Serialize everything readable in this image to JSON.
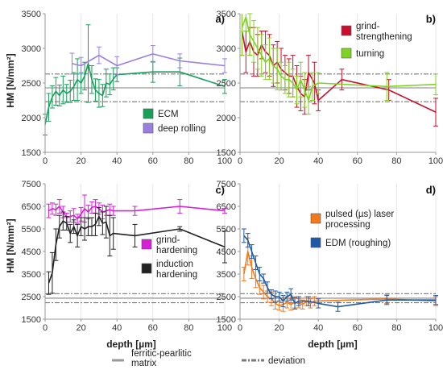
{
  "colors": {
    "axis": "#999999",
    "grid": "#e6e6e6",
    "matrix_line": "#9a9a9a",
    "deviation_line": "#7a7a7a"
  },
  "figure_legend": {
    "matrix_label": "ferritic-pearlitic matrix",
    "deviation_label": "deviation"
  },
  "chart_data": [
    {
      "type": "line",
      "panel_label": "a)",
      "xlabel": "",
      "ylabel": "HM [N/mm²]",
      "xlim": [
        0,
        100
      ],
      "ylim": [
        1500,
        3500
      ],
      "xticks": [
        0,
        20,
        40,
        60,
        80,
        100
      ],
      "yticks": [
        1500,
        2000,
        2500,
        3000,
        3500
      ],
      "grid": "vertical",
      "legend_position": "bottom-right",
      "reference": {
        "matrix": 2430,
        "deviation": [
          2230,
          2630
        ]
      },
      "series": [
        {
          "name": "ECM",
          "color": "#16a05a",
          "x": [
            0,
            2,
            4,
            6,
            8,
            10,
            12,
            14,
            16,
            18,
            20,
            22,
            24,
            26,
            28,
            30,
            32,
            34,
            36,
            38,
            40,
            60,
            75,
            100
          ],
          "y": [
            1900,
            2150,
            2300,
            2380,
            2320,
            2400,
            2350,
            2380,
            2450,
            2550,
            2500,
            2600,
            2780,
            2550,
            2400,
            2350,
            2320,
            2500,
            2480,
            2560,
            2620,
            2660,
            2660,
            2450
          ],
          "err": [
            150,
            200,
            160,
            200,
            150,
            200,
            130,
            160,
            200,
            300,
            150,
            200,
            560,
            200,
            160,
            200,
            160,
            200,
            150,
            160,
            100,
            150,
            200,
            100
          ]
        },
        {
          "name": "deep rolling",
          "color": "#9b7fe0",
          "x": [
            15,
            20,
            30,
            40,
            60,
            75,
            100
          ],
          "y": [
            2780,
            2750,
            2900,
            2750,
            2920,
            2820,
            2750
          ],
          "err": [
            150,
            120,
            120,
            130,
            120,
            100,
            100
          ]
        }
      ]
    },
    {
      "type": "line",
      "panel_label": "b)",
      "xlabel": "",
      "ylabel": "",
      "xlim": [
        0,
        100
      ],
      "ylim": [
        1500,
        3500
      ],
      "xticks": [
        0,
        20,
        40,
        60,
        80,
        100
      ],
      "yticks": [
        1500,
        2000,
        2500,
        3000,
        3500
      ],
      "grid": "vertical",
      "legend_position": "top-right",
      "reference": {
        "matrix": 2430,
        "deviation": [
          2230,
          2630
        ]
      },
      "series": [
        {
          "name": "grind-strengthening",
          "color": "#c8102e",
          "x": [
            1,
            3,
            5,
            7,
            9,
            11,
            13,
            15,
            17,
            19,
            21,
            23,
            25,
            27,
            29,
            31,
            33,
            35,
            38,
            40,
            52,
            76,
            100
          ],
          "y": [
            3250,
            2950,
            3100,
            2950,
            2900,
            3050,
            2950,
            2900,
            2750,
            2800,
            2700,
            2650,
            2600,
            2600,
            2450,
            2350,
            2300,
            2650,
            2500,
            2250,
            2550,
            2400,
            2080
          ],
          "err": [
            350,
            300,
            200,
            350,
            300,
            200,
            300,
            300,
            300,
            300,
            300,
            250,
            250,
            300,
            300,
            250,
            250,
            250,
            300,
            150,
            150,
            150,
            200
          ]
        },
        {
          "name": "turning",
          "color": "#7ed321",
          "x": [
            1,
            3,
            5,
            7,
            9,
            11,
            13,
            15,
            17,
            19,
            21,
            23,
            25,
            27,
            29,
            31,
            33,
            35,
            37,
            40,
            75,
            100
          ],
          "y": [
            3300,
            3450,
            3200,
            3100,
            3000,
            2900,
            2800,
            2850,
            2750,
            2700,
            2600,
            2550,
            2550,
            2500,
            2400,
            2550,
            2400,
            2250,
            2450,
            2500,
            2450,
            2480
          ],
          "err": [
            400,
            200,
            300,
            300,
            300,
            300,
            250,
            300,
            250,
            300,
            200,
            200,
            250,
            200,
            200,
            250,
            250,
            200,
            200,
            150,
            200,
            150
          ]
        }
      ]
    },
    {
      "type": "line",
      "panel_label": "c)",
      "xlabel": "depth [µm]",
      "ylabel": "HM [N/mm²]",
      "xlim": [
        0,
        100
      ],
      "ylim": [
        1500,
        7500
      ],
      "xticks": [
        0,
        20,
        40,
        60,
        80,
        100
      ],
      "yticks": [
        1500,
        2500,
        3500,
        4500,
        5500,
        6500,
        7500
      ],
      "grid": "vertical",
      "legend_position": "bottom-right",
      "reference": {
        "matrix": 2430,
        "deviation": [
          2230,
          2630
        ]
      },
      "series": [
        {
          "name": "grind-hardening",
          "color": "#d61fd6",
          "x": [
            2,
            4,
            6,
            8,
            10,
            12,
            14,
            16,
            18,
            20,
            22,
            24,
            26,
            28,
            30,
            32,
            34,
            36,
            38,
            50,
            75,
            100
          ],
          "y": [
            6300,
            6400,
            6350,
            6500,
            6250,
            6000,
            6050,
            6100,
            5950,
            6150,
            6400,
            6250,
            6450,
            6500,
            6400,
            6250,
            6300,
            6350,
            6300,
            6300,
            6500,
            6300
          ],
          "err": [
            300,
            250,
            250,
            300,
            250,
            200,
            250,
            300,
            200,
            300,
            600,
            300,
            250,
            300,
            250,
            300,
            200,
            250,
            200,
            200,
            300,
            100
          ]
        },
        {
          "name": "induction hardening",
          "color": "#222222",
          "x": [
            2,
            4,
            6,
            8,
            10,
            12,
            14,
            16,
            18,
            20,
            22,
            24,
            26,
            28,
            30,
            32,
            34,
            36,
            38,
            50,
            75,
            100
          ],
          "y": [
            3100,
            3550,
            4800,
            5600,
            5850,
            5750,
            5300,
            5600,
            5200,
            5600,
            5500,
            5600,
            5600,
            5700,
            6050,
            5750,
            5800,
            5200,
            5300,
            5200,
            5500,
            4700
          ],
          "err": [
            500,
            900,
            700,
            500,
            400,
            300,
            400,
            300,
            500,
            400,
            500,
            400,
            400,
            500,
            400,
            500,
            700,
            900,
            700,
            500,
            100,
            700
          ]
        }
      ]
    },
    {
      "type": "line",
      "panel_label": "d)",
      "xlabel": "depth [µm]",
      "ylabel": "",
      "xlim": [
        0,
        100
      ],
      "ylim": [
        1500,
        7500
      ],
      "xticks": [
        0,
        20,
        40,
        60,
        80,
        100
      ],
      "yticks": [
        1500,
        2500,
        3500,
        4500,
        5500,
        6500,
        7500
      ],
      "grid": "vertical",
      "legend_position": "top-right",
      "reference": {
        "matrix": 2430,
        "deviation": [
          2230,
          2630
        ]
      },
      "series": [
        {
          "name": "pulsed (µs) laser processing",
          "color": "#f07a1e",
          "x": [
            2,
            4,
            6,
            8,
            10,
            12,
            14,
            16,
            18,
            20,
            22,
            24,
            26,
            28,
            30,
            32,
            34,
            36,
            38,
            75,
            100
          ],
          "y": [
            3500,
            4500,
            3800,
            3300,
            2900,
            2700,
            2500,
            2400,
            2200,
            2100,
            2150,
            2250,
            2150,
            2250,
            2200,
            2150,
            2300,
            2200,
            2300,
            2400,
            2300
          ],
          "err": [
            300,
            600,
            500,
            400,
            300,
            300,
            250,
            300,
            250,
            200,
            300,
            250,
            250,
            250,
            200,
            200,
            200,
            200,
            200,
            200,
            200
          ]
        },
        {
          "name": "EDM (roughing)",
          "color": "#1f5aa8",
          "x": [
            2,
            4,
            6,
            8,
            10,
            12,
            14,
            16,
            18,
            20,
            22,
            24,
            26,
            28,
            30,
            35,
            40,
            50,
            75,
            100
          ],
          "y": [
            5200,
            5000,
            4500,
            4000,
            3500,
            3300,
            2900,
            2600,
            2500,
            2500,
            2300,
            2500,
            2600,
            2200,
            2300,
            2300,
            2200,
            2050,
            2350,
            2350
          ],
          "err": [
            300,
            300,
            300,
            300,
            300,
            200,
            250,
            200,
            250,
            200,
            250,
            200,
            250,
            250,
            200,
            200,
            200,
            200,
            200,
            200
          ]
        }
      ]
    }
  ]
}
